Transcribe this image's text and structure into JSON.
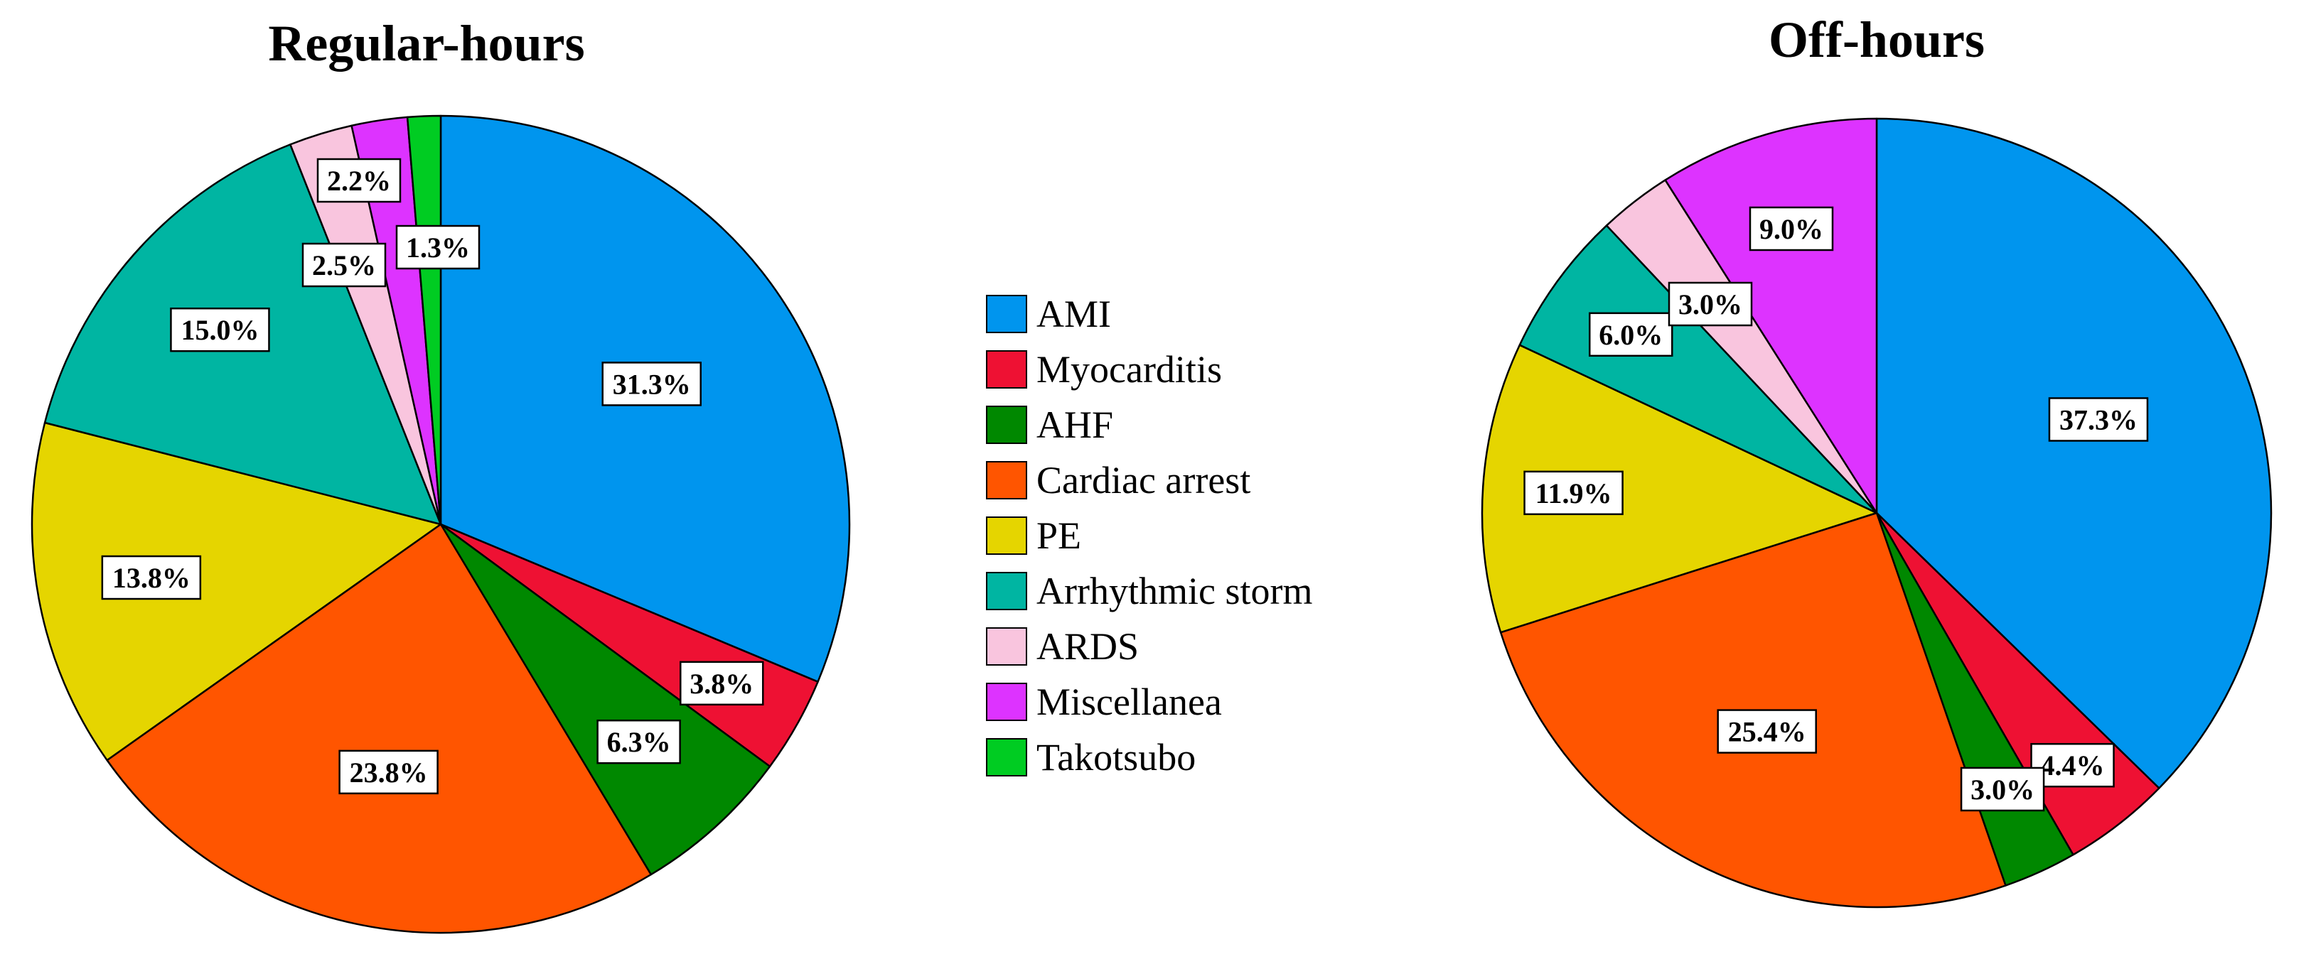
{
  "chart_data": [
    {
      "type": "pie",
      "title": "Regular-hours",
      "slices": [
        {
          "label": "AMI",
          "value": 31.3,
          "text": "31.3%"
        },
        {
          "label": "Myocarditis",
          "value": 3.8,
          "text": "3.8%"
        },
        {
          "label": "AHF",
          "value": 6.3,
          "text": "6.3%"
        },
        {
          "label": "Cardiac arrest",
          "value": 23.8,
          "text": "23.8%"
        },
        {
          "label": "PE",
          "value": 13.8,
          "text": "13.8%"
        },
        {
          "label": "Arrhythmic storm",
          "value": 15.0,
          "text": "15.0%"
        },
        {
          "label": "ARDS",
          "value": 2.5,
          "text": "2.5%"
        },
        {
          "label": "Miscellanea",
          "value": 2.2,
          "text": "2.2%"
        },
        {
          "label": "Takotsubo",
          "value": 1.3,
          "text": "1.3%"
        }
      ]
    },
    {
      "type": "pie",
      "title": "Off-hours",
      "slices": [
        {
          "label": "AMI",
          "value": 37.3,
          "text": "37.3%"
        },
        {
          "label": "Myocarditis",
          "value": 4.4,
          "text": "4.4%"
        },
        {
          "label": "AHF",
          "value": 3.0,
          "text": "3.0%"
        },
        {
          "label": "Cardiac arrest",
          "value": 25.4,
          "text": "25.4%"
        },
        {
          "label": "PE",
          "value": 11.9,
          "text": "11.9%"
        },
        {
          "label": "Arrhythmic storm",
          "value": 6.0,
          "text": "6.0%"
        },
        {
          "label": "ARDS",
          "value": 3.0,
          "text": "3.0%"
        },
        {
          "label": "Miscellanea",
          "value": 9.0,
          "text": "9.0%"
        }
      ]
    }
  ],
  "legend": {
    "placement": "center",
    "items": [
      {
        "label": "AMI",
        "color": "#0095EE"
      },
      {
        "label": "Myocarditis",
        "color": "#EE1133"
      },
      {
        "label": "AHF",
        "color": "#008800"
      },
      {
        "label": "Cardiac arrest",
        "color": "#FF5500"
      },
      {
        "label": "PE",
        "color": "#E5D500"
      },
      {
        "label": "Arrhythmic storm",
        "color": "#00B5A2"
      },
      {
        "label": "ARDS",
        "color": "#F9C5DE"
      },
      {
        "label": "Miscellanea",
        "color": "#DD33FF"
      },
      {
        "label": "Takotsubo",
        "color": "#00CC22"
      }
    ]
  }
}
